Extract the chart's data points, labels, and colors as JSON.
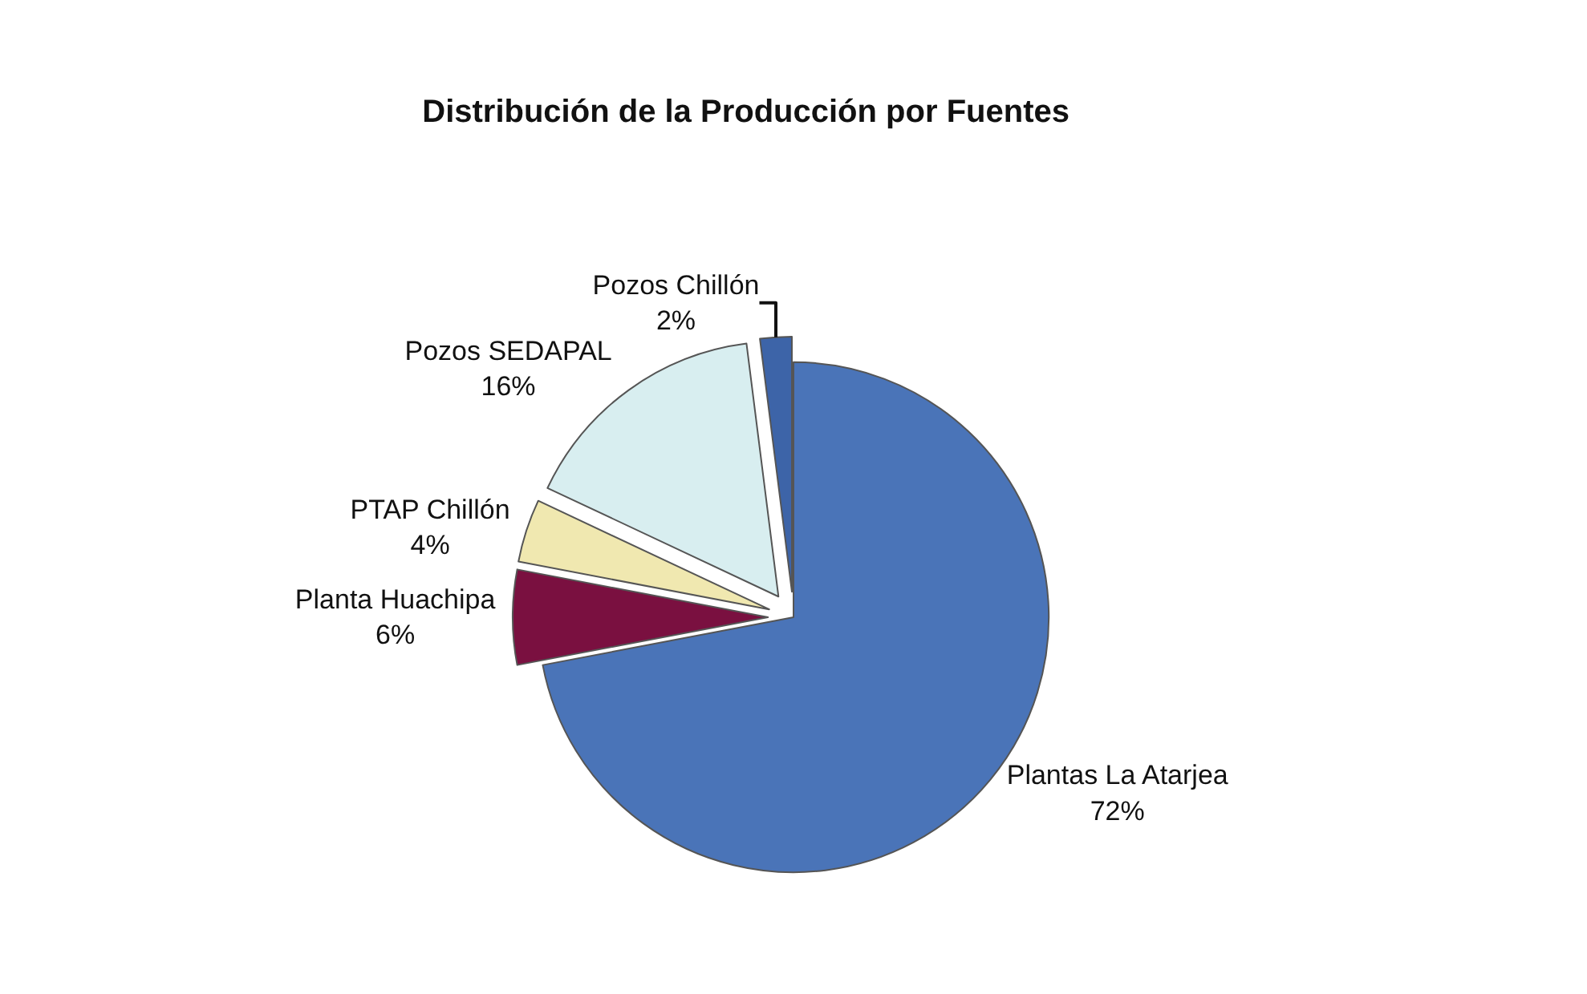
{
  "chart_data": {
    "type": "pie",
    "title": "Distribución de la Producción por Fuentes",
    "categories": [
      "Plantas La Atarjea",
      "Planta Huachipa",
      "PTAP Chillón",
      "Pozos SEDAPAL",
      "Pozos Chillón"
    ],
    "values": [
      72,
      6,
      4,
      16,
      2
    ],
    "value_labels": [
      "72%",
      "6%",
      "4%",
      "16%",
      "2%"
    ],
    "colors": [
      "#4a74b8",
      "#7a1040",
      "#f0e8b0",
      "#d8eef0",
      "#3d64a8"
    ]
  }
}
